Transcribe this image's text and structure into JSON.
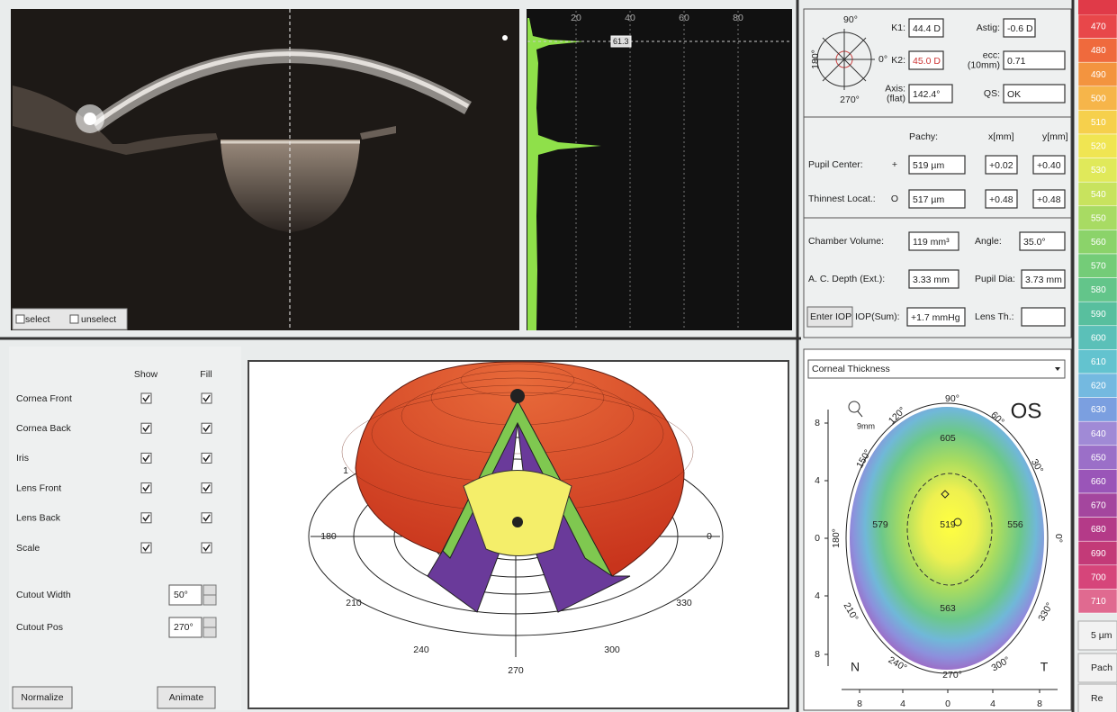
{
  "image_panel": {
    "checkboxes": [
      "select",
      "unselect"
    ]
  },
  "profile": {
    "ticks": [
      20,
      40,
      60,
      80
    ],
    "marker": "61.3"
  },
  "keratometry": {
    "compass": [
      "90°",
      "180°",
      "270°",
      "0°"
    ],
    "fields": [
      {
        "label": [
          "K1:"
        ],
        "value": "44.4 D"
      },
      {
        "label": [
          "Astig:"
        ],
        "value": "-0.6 D"
      },
      {
        "label": [
          "K2:"
        ],
        "value": "45.0 D"
      },
      {
        "label": [
          "ecc:",
          "(10mm)"
        ],
        "value": "0.71"
      },
      {
        "label": [
          "Axis:",
          "(flat)"
        ],
        "value": "142.4°"
      },
      {
        "label": [
          "QS:"
        ],
        "value": "OK"
      }
    ]
  },
  "pachy": {
    "headers": [
      "Pachy:",
      "x[mm]",
      "y[mm]"
    ],
    "rows": [
      {
        "label": "Pupil Center:",
        "symbol": "+",
        "cells": [
          "519 µm",
          "+0.02",
          "+0.40"
        ]
      },
      {
        "label": "Thinnest Locat.:",
        "symbol": "O",
        "cells": [
          "517 µm",
          "+0.48",
          "+0.48"
        ]
      }
    ]
  },
  "chamber": {
    "fields": [
      {
        "label": "Chamber Volume:",
        "value": "119 mm³"
      },
      {
        "label": "Angle:",
        "value": "35.0°"
      },
      {
        "label": "A. C. Depth (Ext.):",
        "value": "3.33 mm"
      },
      {
        "label": "Pupil Dia:",
        "value": "3.73 mm"
      },
      {
        "label": "IOP(Sum):",
        "value": "+1.7 mmHg"
      },
      {
        "label": "Lens Th.:",
        "value": ""
      }
    ],
    "button": "Enter IOP"
  },
  "color_scale": {
    "labels": [
      470,
      480,
      490,
      500,
      510,
      520,
      530,
      540,
      550,
      560,
      570,
      580,
      590,
      600,
      610,
      620,
      630,
      640,
      650,
      660,
      670,
      680,
      690,
      700,
      710
    ],
    "colors": [
      "#e8474a",
      "#ef6a3d",
      "#f3943f",
      "#f6b54a",
      "#f6d04c",
      "#f0e552",
      "#e0e95a",
      "#c8e35e",
      "#a8db63",
      "#8bd36a",
      "#74cc78",
      "#63c58a",
      "#58bf9e",
      "#5bc0b8",
      "#63c3cf",
      "#74b9e0",
      "#7b9fe0",
      "#a08ad6",
      "#9b6fc8",
      "#9a55b8",
      "#a4469e",
      "#b43a88",
      "#c33a78",
      "#d6457a",
      "#e06a90"
    ],
    "footer": [
      "5 µm",
      "Pach",
      "Re"
    ]
  },
  "controls": {
    "headers": [
      "Show",
      "Fill"
    ],
    "items": [
      "Cornea Front",
      "Cornea Back",
      "Iris",
      "Lens Front",
      "Lens Back",
      "Scale"
    ],
    "spinners": [
      {
        "label": "Cutout Width",
        "value": "50°"
      },
      {
        "label": "Cutout Pos",
        "value": "270°"
      }
    ],
    "buttons": [
      "Normalize",
      "Animate"
    ]
  },
  "view3d": {
    "labels": [
      "180",
      "0",
      "210",
      "330",
      "240",
      "300",
      "270",
      "1"
    ]
  },
  "thickness_map": {
    "dropdown": "Corneal Thickness",
    "eye": "OS",
    "zoom": "9mm",
    "angles": [
      "90°",
      "120°",
      "60°",
      "150°",
      "30°",
      "180°",
      "0°",
      "210°",
      "330°",
      "240°",
      "300°",
      "270°"
    ],
    "values": [
      "605",
      "579",
      "519",
      "556",
      "563"
    ],
    "orientation": [
      "N",
      "T"
    ],
    "y_ticks": [
      "8",
      "4",
      "0",
      "4",
      "8"
    ],
    "x_ticks": [
      "8",
      "4",
      "0",
      "4",
      "8"
    ]
  }
}
